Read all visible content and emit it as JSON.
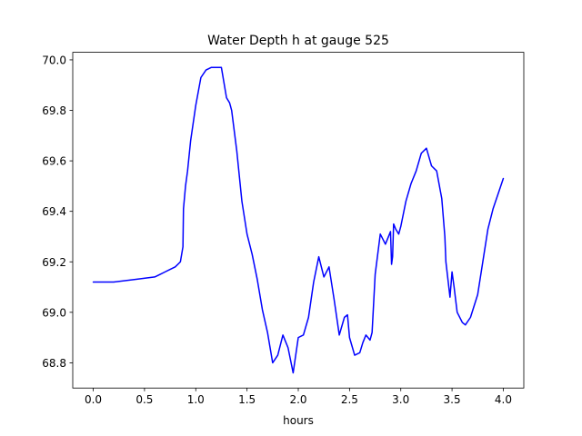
{
  "chart_data": {
    "type": "line",
    "title": "Water Depth h at gauge 525",
    "xlabel": "hours",
    "ylabel": "",
    "xlim": [
      -0.2,
      4.2
    ],
    "ylim": [
      68.7,
      70.03
    ],
    "xticks": [
      "0.0",
      "0.5",
      "1.0",
      "1.5",
      "2.0",
      "2.5",
      "3.0",
      "3.5",
      "4.0"
    ],
    "yticks": [
      "68.8",
      "69.0",
      "69.2",
      "69.4",
      "69.6",
      "69.8",
      "70.0"
    ],
    "grid": false,
    "line_color": "#0000ff",
    "series": [
      {
        "x": [
          0.0,
          0.2,
          0.4,
          0.6,
          0.65,
          0.7,
          0.75,
          0.8,
          0.85,
          0.875,
          0.88,
          0.9,
          0.92,
          0.95,
          1.0,
          1.05,
          1.1,
          1.15,
          1.2,
          1.25,
          1.3,
          1.33,
          1.35,
          1.4,
          1.45,
          1.5,
          1.55,
          1.6,
          1.65,
          1.7,
          1.75,
          1.8,
          1.85,
          1.9,
          1.95,
          2.0,
          2.05,
          2.1,
          2.15,
          2.2,
          2.25,
          2.3,
          2.35,
          2.4,
          2.45,
          2.48,
          2.5,
          2.55,
          2.6,
          2.63,
          2.66,
          2.7,
          2.72,
          2.75,
          2.8,
          2.85,
          2.9,
          2.91,
          2.92,
          2.93,
          2.95,
          2.98,
          3.0,
          3.05,
          3.1,
          3.15,
          3.2,
          3.25,
          3.3,
          3.35,
          3.4,
          3.43,
          3.44,
          3.48,
          3.5,
          3.52,
          3.55,
          3.6,
          3.63,
          3.68,
          3.75,
          3.8,
          3.85,
          3.9,
          3.95,
          4.0
        ],
        "y": [
          69.12,
          69.12,
          69.13,
          69.14,
          69.15,
          69.16,
          69.17,
          69.18,
          69.2,
          69.26,
          69.41,
          69.5,
          69.56,
          69.68,
          69.82,
          69.93,
          69.96,
          69.97,
          69.97,
          69.97,
          69.85,
          69.83,
          69.8,
          69.64,
          69.44,
          69.31,
          69.23,
          69.13,
          69.01,
          68.92,
          68.8,
          68.83,
          68.91,
          68.86,
          68.76,
          68.9,
          68.91,
          68.98,
          69.12,
          69.22,
          69.14,
          69.18,
          69.05,
          68.91,
          68.98,
          68.99,
          68.9,
          68.83,
          68.84,
          68.88,
          68.91,
          68.89,
          68.92,
          69.15,
          69.31,
          69.27,
          69.32,
          69.19,
          69.22,
          69.35,
          69.33,
          69.31,
          69.34,
          69.44,
          69.51,
          69.56,
          69.63,
          69.65,
          69.58,
          69.56,
          69.45,
          69.3,
          69.2,
          69.06,
          69.16,
          69.1,
          69.0,
          68.96,
          68.95,
          68.98,
          69.07,
          69.2,
          69.33,
          69.41,
          69.47,
          69.53
        ]
      }
    ]
  }
}
